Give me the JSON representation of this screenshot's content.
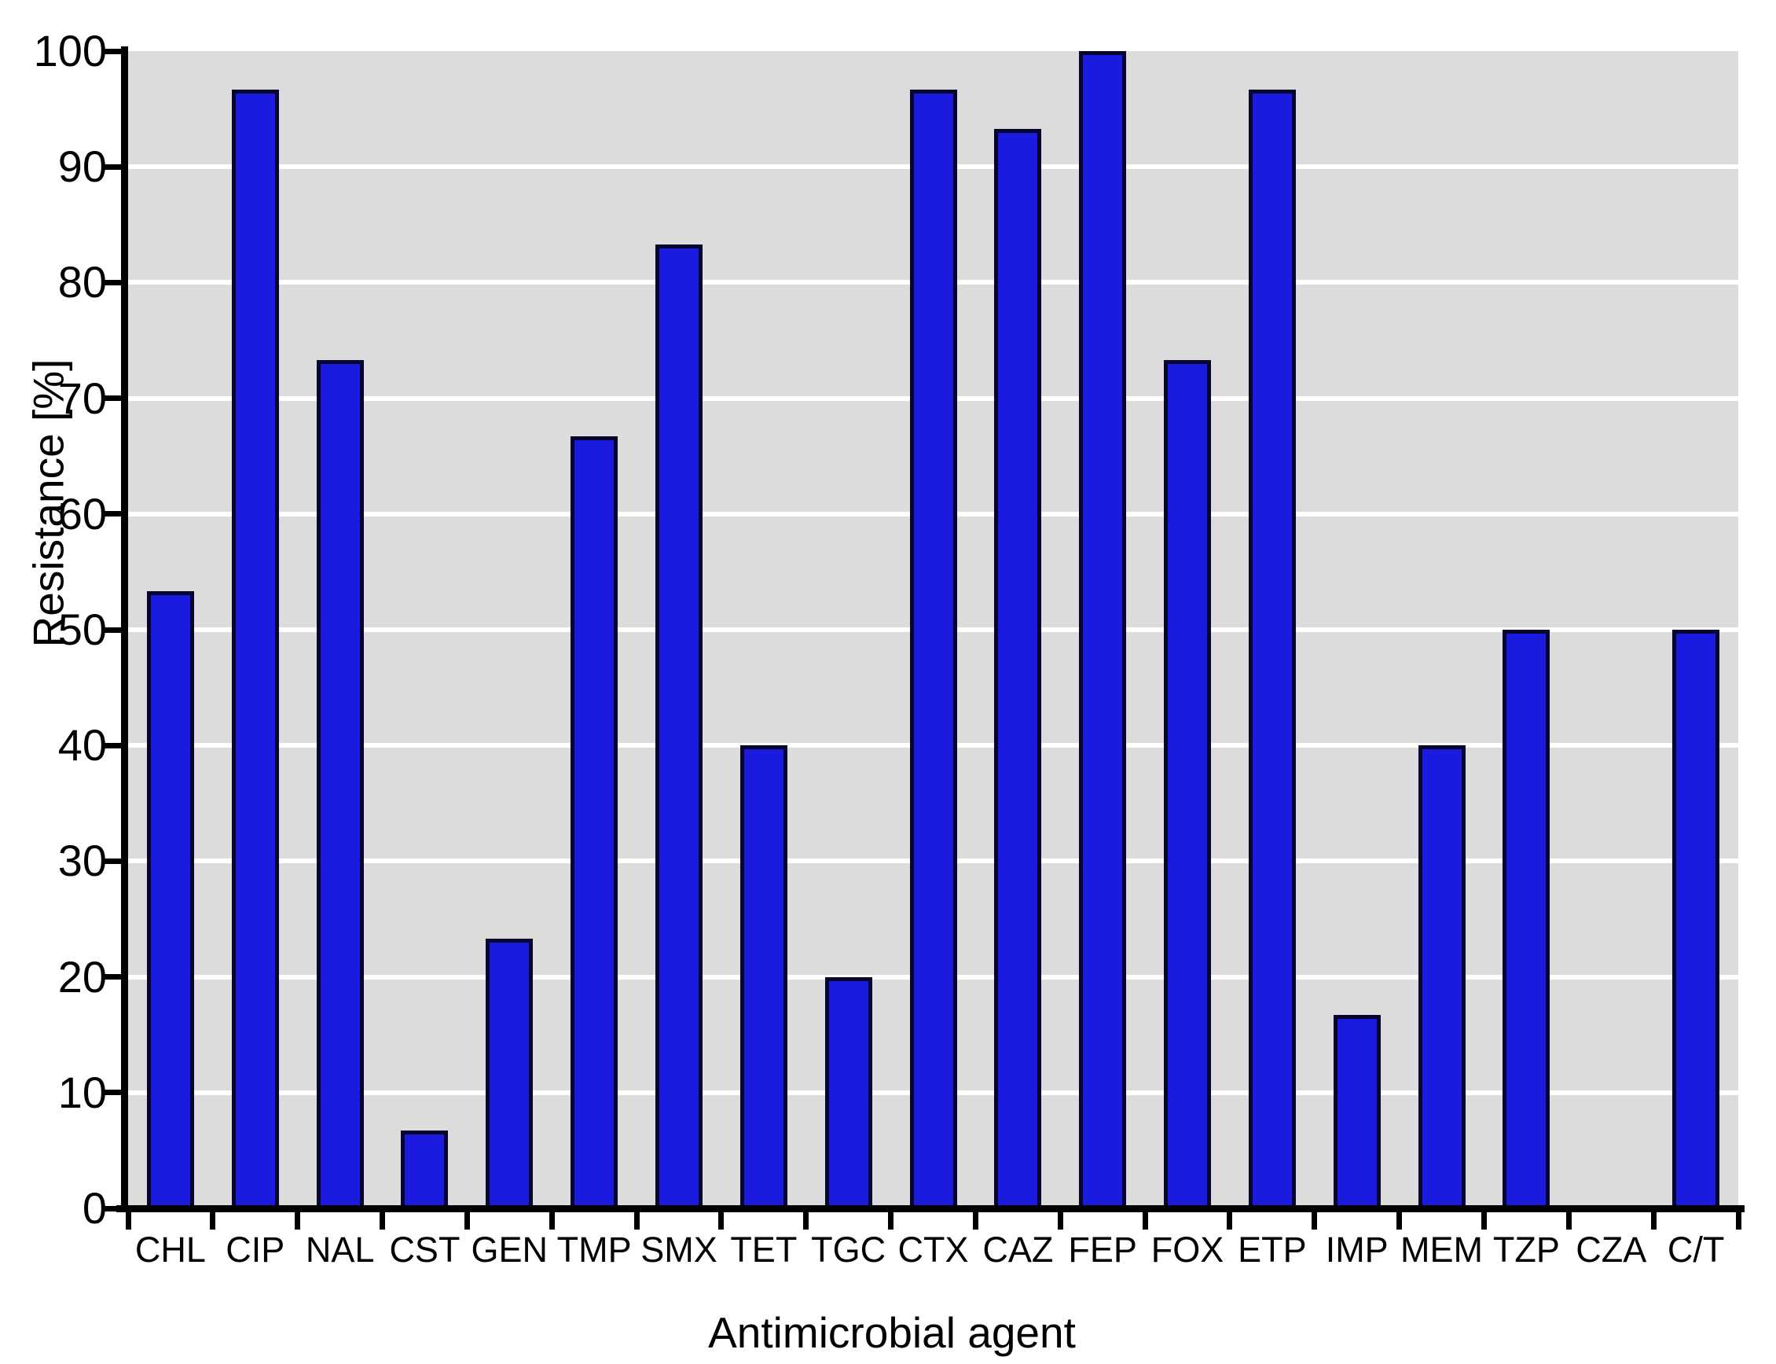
{
  "chart_data": {
    "type": "bar",
    "title": "",
    "xlabel": "Antimicrobial agent",
    "ylabel": "Resistance [%]",
    "categories": [
      "CHL",
      "CIP",
      "NAL",
      "CST",
      "GEN",
      "TMP",
      "SMX",
      "TET",
      "TGC",
      "CTX",
      "CAZ",
      "FEP",
      "FOX",
      "ETP",
      "IMP",
      "MEM",
      "TZP",
      "CZA",
      "C/T"
    ],
    "values": [
      53.3,
      96.7,
      73.3,
      6.7,
      23.3,
      66.7,
      83.3,
      40,
      20,
      96.7,
      93.3,
      100,
      73.3,
      96.7,
      16.7,
      40,
      50,
      0,
      50
    ],
    "ylim": [
      0,
      100
    ],
    "yticks": [
      0,
      10,
      20,
      30,
      40,
      50,
      60,
      70,
      80,
      90,
      100
    ],
    "grid": "horizontal",
    "legend": "none",
    "colors": {
      "bar_fill": "#1b1be0",
      "bar_border": "#05052d",
      "plot_background": "#dcdcdc",
      "gridline": "#ffffff",
      "axis": "#000000",
      "text": "#000000"
    }
  }
}
